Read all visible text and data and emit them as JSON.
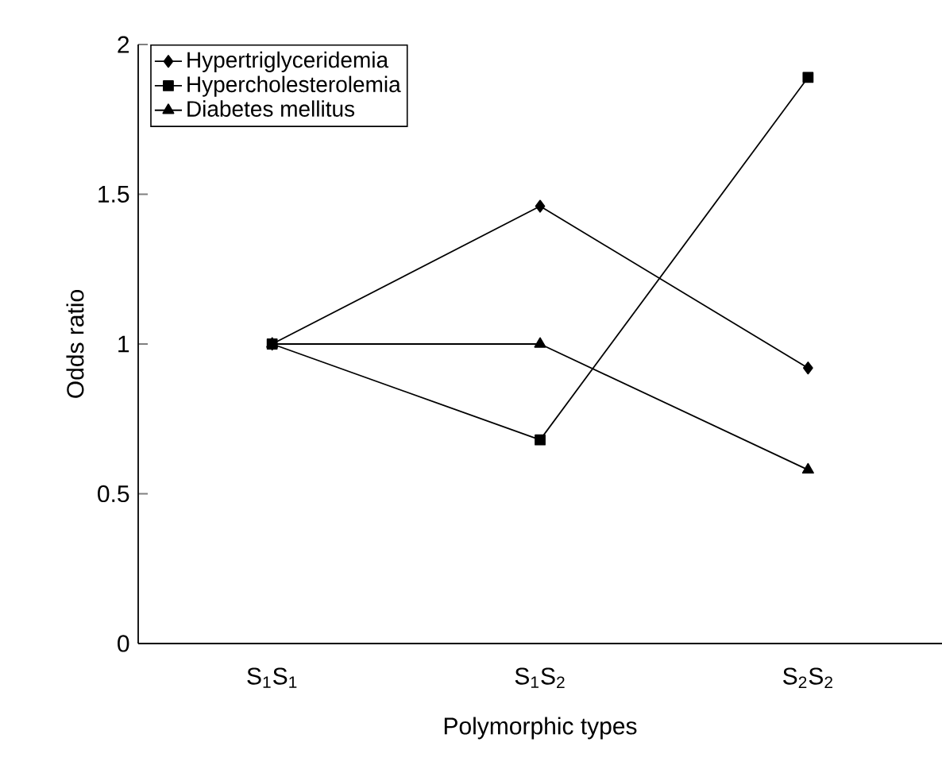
{
  "chart_data": {
    "type": "line",
    "xlabel": "Polymorphic types",
    "ylabel": "Odds ratio",
    "categories": [
      "S$_{1}$S$_{1}$",
      "S$_{1}$S$_{2}$",
      "S$_{2}$S$_{2}$"
    ],
    "ylim": [
      0,
      2
    ],
    "yticks": [
      0,
      0.5,
      1,
      1.5,
      2
    ],
    "legend": "top left",
    "line_style": "solid",
    "series": [
      {
        "name": "Hypertriglyceridemia",
        "color": "#000000",
        "marker": "diamond",
        "values": [
          1,
          1.46,
          0.92
        ]
      },
      {
        "name": "Hypercholesterolemia",
        "color": "#000000",
        "marker": "square",
        "values": [
          1,
          0.68,
          1.89
        ]
      },
      {
        "name": "Diabetes mellitus",
        "color": "#000000",
        "marker": "triangle",
        "values": [
          1,
          1,
          0.58
        ]
      }
    ]
  }
}
